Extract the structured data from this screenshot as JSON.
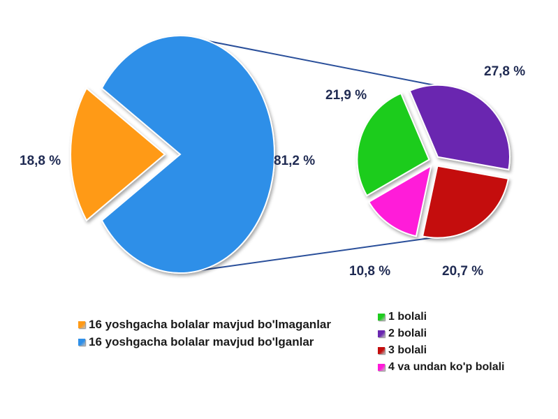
{
  "chart_data": [
    {
      "type": "pie",
      "categories": [
        "16 yoshgacha bolalar mavjud bo'lmaganlar",
        "16 yoshgacha bolalar mavjud bo'lganlar"
      ],
      "values": [
        18.8,
        81.2
      ],
      "labels": [
        "18,8 %",
        "81,2 %"
      ],
      "colors": [
        "#ff9a16",
        "#2f8fe8"
      ],
      "exploded": [
        true,
        false
      ],
      "title": ""
    },
    {
      "type": "pie",
      "categories": [
        "1 bolali",
        "2 bolali",
        "3 bolali",
        "4 va undan ko'p bolali"
      ],
      "values": [
        21.9,
        27.8,
        20.7,
        10.8
      ],
      "labels": [
        "21,9 %",
        "27,8 %",
        "20,7 %",
        "10,8 %"
      ],
      "colors": [
        "#1fcc1f",
        "#6a28b0",
        "#c40d0d",
        "#ff1ad9"
      ],
      "title": ""
    }
  ],
  "legend_left": [
    {
      "label": "16 yoshgacha bolalar mavjud bo'lmaganlar",
      "color": "#ff9a16"
    },
    {
      "label": "16 yoshgacha bolalar mavjud bo'lganlar",
      "color": "#2f8fe8"
    }
  ],
  "legend_right": [
    {
      "label": "1 bolali",
      "color": "#1fcc1f"
    },
    {
      "label": "2 bolali",
      "color": "#6a28b0"
    },
    {
      "label": "3 bolali",
      "color": "#c40d0d"
    },
    {
      "label": "4 va undan ko'p bolali",
      "color": "#ff1ad9"
    }
  ],
  "connector_color": "#2a4f9a"
}
